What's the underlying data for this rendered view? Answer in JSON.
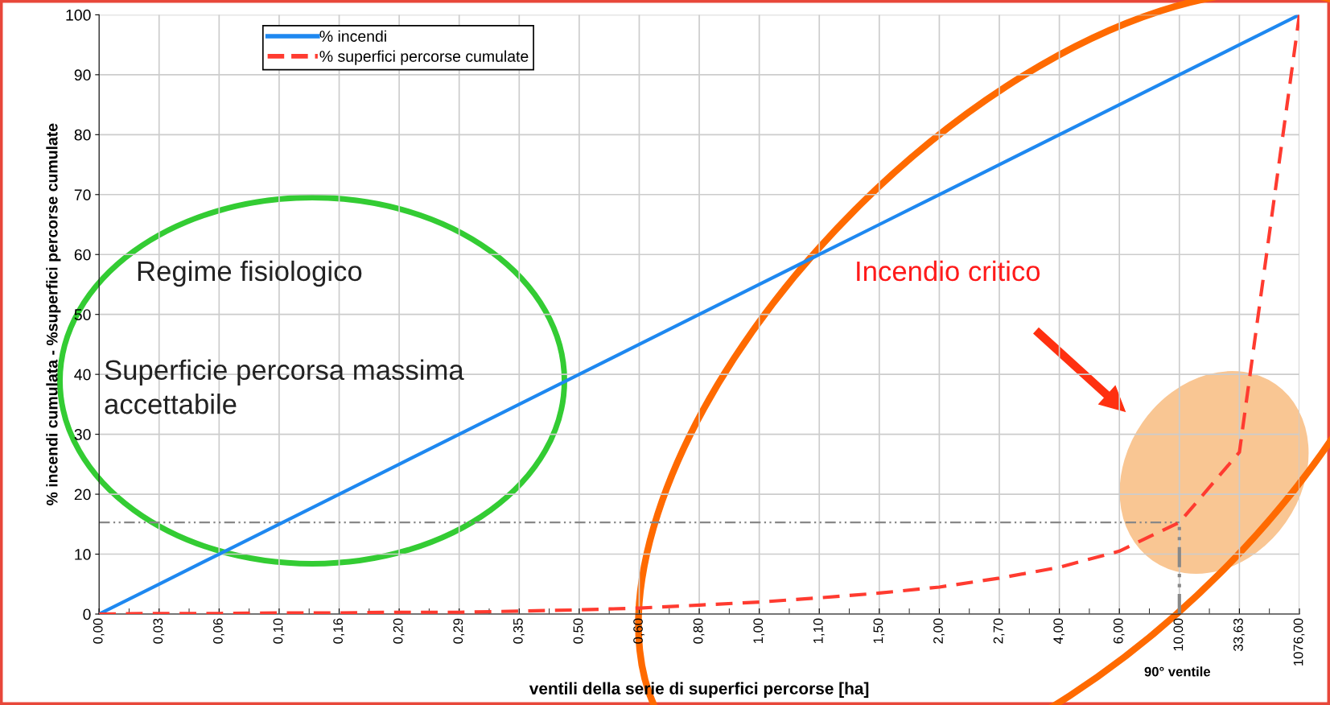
{
  "chart_data": {
    "type": "line",
    "xlabel": "ventili della serie di superfici percorse [ha]",
    "ylabel": "% incendi cumulata - %superfici percorse cumulate",
    "categories": [
      "0,00",
      "0,03",
      "0,06",
      "0,10",
      "0,16",
      "0,20",
      "0,29",
      "0,35",
      "0,50",
      "0,60",
      "0,80",
      "1,00",
      "1,10",
      "1,50",
      "2,00",
      "2,70",
      "4,00",
      "6,00",
      "10,00",
      "33,63",
      "1076,00"
    ],
    "series": [
      {
        "name": "% incendi",
        "color": "#1e88f0",
        "line_style": "solid",
        "values": [
          0,
          5,
          10,
          15,
          20,
          25,
          30,
          35,
          40,
          45,
          50,
          55,
          60,
          65,
          70,
          75,
          80,
          85,
          90,
          95,
          100
        ]
      },
      {
        "name": "% superfici percorse cumulate",
        "color": "#ff3b30",
        "line_style": "dashed",
        "values": [
          0,
          0.1,
          0.1,
          0.2,
          0.2,
          0.3,
          0.3,
          0.5,
          0.7,
          1,
          1.5,
          2,
          2.7,
          3.5,
          4.5,
          6,
          7.8,
          10.5,
          15.3,
          27,
          100
        ]
      }
    ],
    "ylim": [
      0,
      100
    ],
    "yticks": [
      0,
      10,
      20,
      30,
      40,
      50,
      60,
      70,
      80,
      90,
      100
    ],
    "grid": true,
    "legend": "top",
    "ref_lines": [
      {
        "axis": "y",
        "value": 15.3,
        "color": "#888888",
        "line_style": "dashed"
      },
      {
        "axis": "x",
        "value": "10,00",
        "color": "#888888",
        "line_style": "dashed"
      }
    ],
    "annotations": [
      "90° ventile",
      "Regime fisiologico",
      "Superficie percorsa massima\naccettabile",
      "Incendio critico"
    ]
  }
}
